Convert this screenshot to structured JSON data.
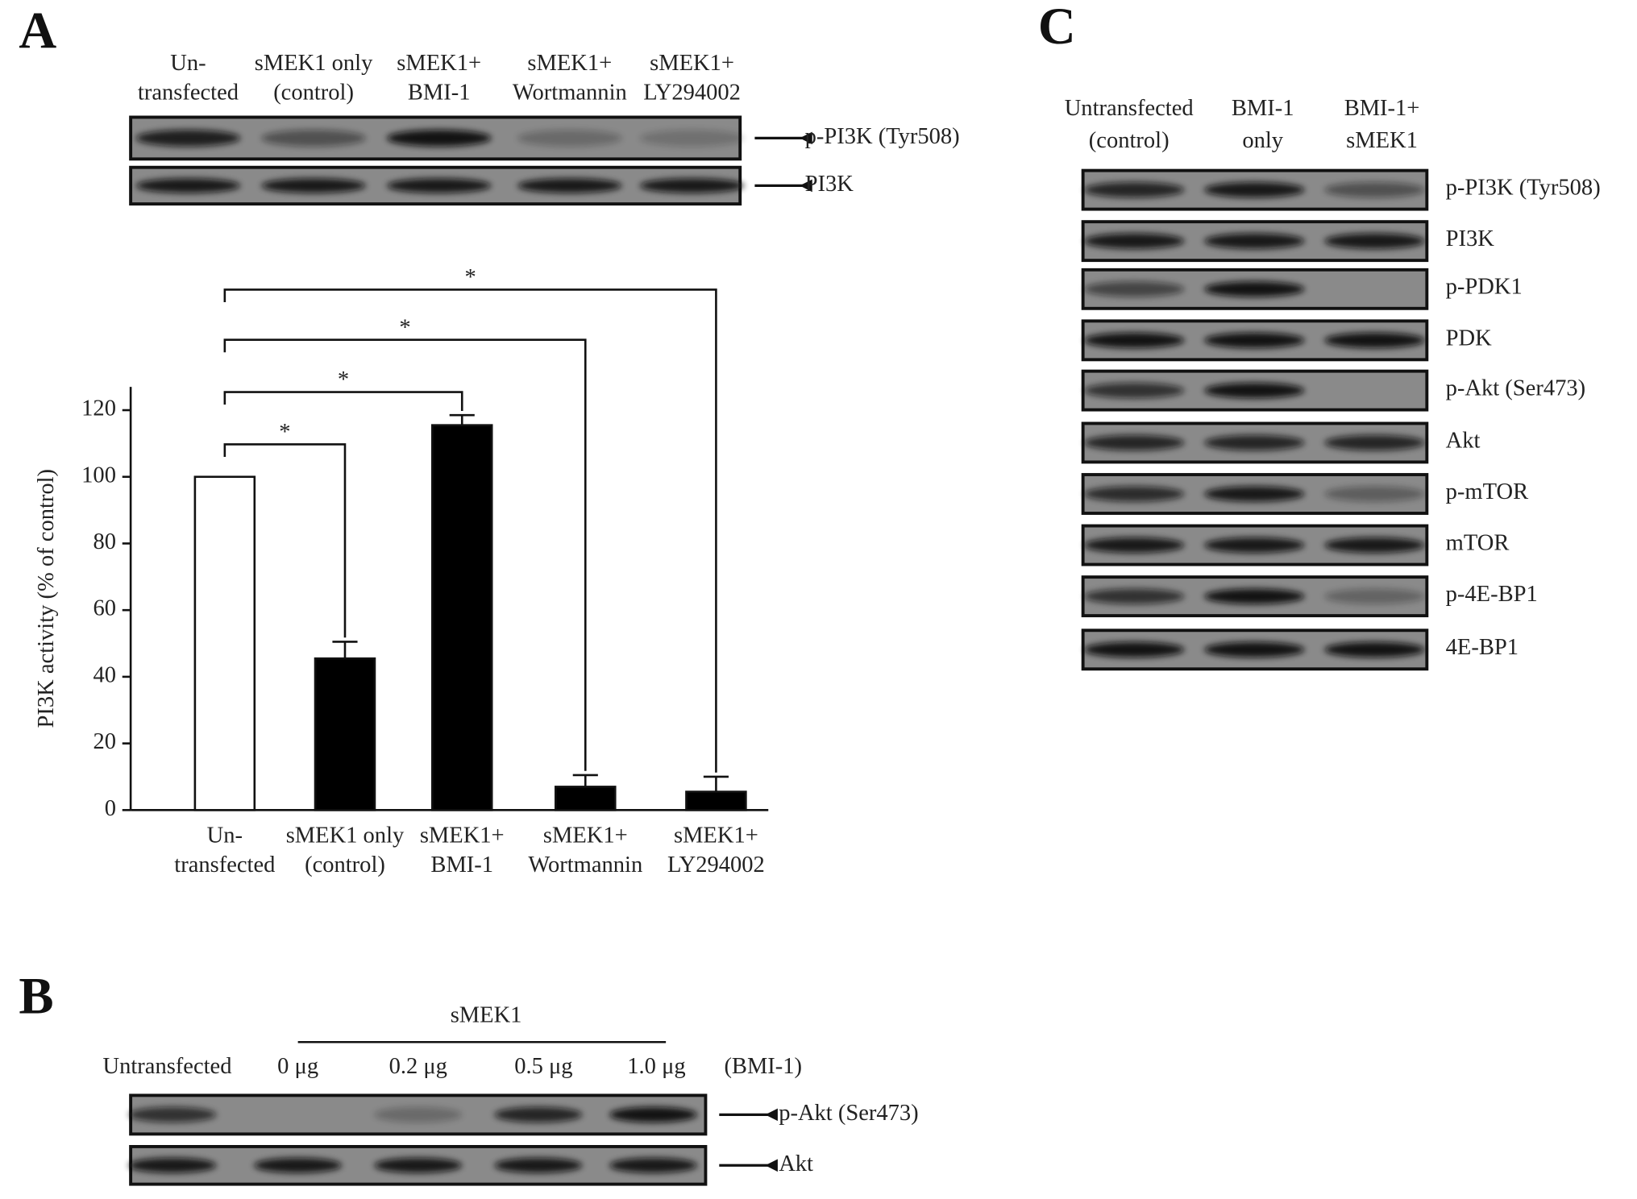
{
  "panel_a": {
    "label": "A",
    "lanes": [
      [
        "Un-",
        "transfected"
      ],
      [
        "sMEK1 only",
        "(control)"
      ],
      [
        "sMEK1+",
        "BMI-1"
      ],
      [
        "sMEK1+",
        "Wortmannin"
      ],
      [
        "sMEK1+",
        "LY294002"
      ]
    ],
    "blots": [
      "p-PI3K (Tyr508)",
      "PI3K"
    ]
  },
  "chart_data": {
    "type": "bar",
    "y_label": "PI3K activity (% of control)",
    "categories": [
      [
        "Un-",
        "transfected"
      ],
      [
        "sMEK1 only",
        "(control)"
      ],
      [
        "sMEK1+",
        "BMI-1"
      ],
      [
        "sMEK1+",
        "Wortmannin"
      ],
      [
        "sMEK1+",
        "LY294002"
      ]
    ],
    "values": [
      100,
      45.5,
      115.5,
      7,
      5.5
    ],
    "errors": [
      0,
      5,
      3,
      3.5,
      4.5
    ],
    "colors": [
      "#ffffff",
      "#000000",
      "#000000",
      "#000000",
      "#000000"
    ],
    "ylim": [
      0,
      127
    ],
    "yticks": [
      0,
      20,
      40,
      60,
      80,
      100,
      120
    ],
    "significance": [
      {
        "from": 0,
        "to": 1,
        "label": "*"
      },
      {
        "from": 0,
        "to": 2,
        "label": "*"
      },
      {
        "from": 0,
        "to": 3,
        "label": "*"
      },
      {
        "from": 0,
        "to": 4,
        "label": "*"
      }
    ]
  },
  "panel_b": {
    "label": "B",
    "group_label": "sMEK1",
    "lanes": [
      "Untransfected",
      "0 μg",
      "0.2 μg",
      "0.5 μg",
      "1.0 μg"
    ],
    "lane_note": "(BMI-1)",
    "blots": [
      "p-Akt (Ser473)",
      "Akt"
    ]
  },
  "panel_c": {
    "label": "C",
    "lanes": [
      [
        "Untransfected",
        "(control)"
      ],
      [
        "BMI-1",
        "only"
      ],
      [
        "BMI-1+",
        "sMEK1"
      ]
    ],
    "blots": [
      "p-PI3K (Tyr508)",
      "PI3K",
      "p-PDK1",
      "PDK",
      "p-Akt (Ser473)",
      "Akt",
      "p-mTOR",
      "mTOR",
      "p-4E-BP1",
      "4E-BP1"
    ]
  }
}
